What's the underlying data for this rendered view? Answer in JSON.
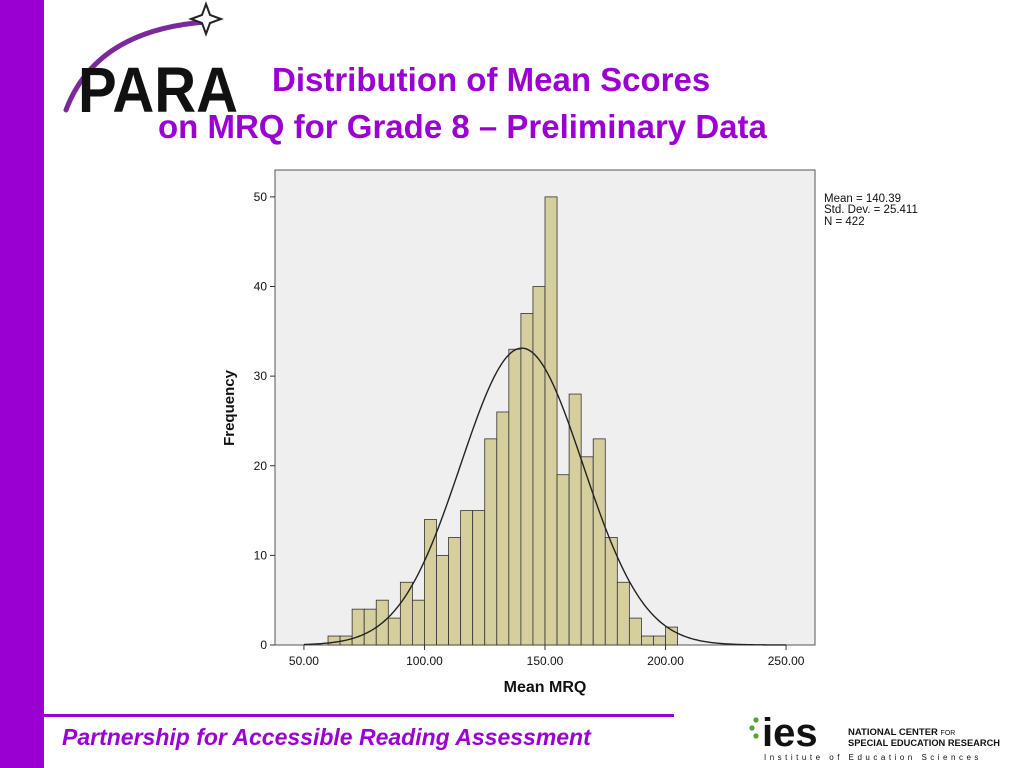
{
  "slide": {
    "title_line1": "Distribution of Mean Scores",
    "title_line2": "on MRQ for Grade 8 – Preliminary Data",
    "footer": "Partnership for Accessible Reading Assessment",
    "accent_color": "#9b00d3"
  },
  "logo": {
    "text": "PARA",
    "icon": "four-point-star-icon"
  },
  "ies_logo": {
    "mark": "ies",
    "line1_a": "NATIONAL CENTER",
    "line1_b": "FOR",
    "line2": "SPECIAL EDUCATION RESEARCH",
    "line3": "Institute of Education Sciences"
  },
  "chart_data": {
    "type": "bar",
    "subtype": "histogram",
    "xlabel": "Mean MRQ",
    "ylabel": "Frequency",
    "xlim": [
      38,
      262
    ],
    "ylim": [
      0,
      53
    ],
    "xticks": [
      50,
      100,
      150,
      200,
      250
    ],
    "xtick_labels": [
      "50.00",
      "100.00",
      "150.00",
      "200.00",
      "250.00"
    ],
    "yticks": [
      0,
      10,
      20,
      30,
      40,
      50
    ],
    "ytick_labels": [
      "0",
      "10",
      "20",
      "30",
      "40",
      "50"
    ],
    "bin_width": 5,
    "bins": [
      {
        "x0": 60,
        "count": 1
      },
      {
        "x0": 65,
        "count": 1
      },
      {
        "x0": 70,
        "count": 4
      },
      {
        "x0": 75,
        "count": 4
      },
      {
        "x0": 80,
        "count": 5
      },
      {
        "x0": 85,
        "count": 3
      },
      {
        "x0": 90,
        "count": 7
      },
      {
        "x0": 95,
        "count": 5
      },
      {
        "x0": 100,
        "count": 14
      },
      {
        "x0": 105,
        "count": 10
      },
      {
        "x0": 110,
        "count": 12
      },
      {
        "x0": 115,
        "count": 15
      },
      {
        "x0": 120,
        "count": 15
      },
      {
        "x0": 125,
        "count": 23
      },
      {
        "x0": 130,
        "count": 26
      },
      {
        "x0": 135,
        "count": 33
      },
      {
        "x0": 140,
        "count": 37
      },
      {
        "x0": 145,
        "count": 40
      },
      {
        "x0": 150,
        "count": 50
      },
      {
        "x0": 155,
        "count": 19
      },
      {
        "x0": 160,
        "count": 28
      },
      {
        "x0": 165,
        "count": 21
      },
      {
        "x0": 170,
        "count": 23
      },
      {
        "x0": 175,
        "count": 12
      },
      {
        "x0": 180,
        "count": 7
      },
      {
        "x0": 185,
        "count": 3
      },
      {
        "x0": 190,
        "count": 1
      },
      {
        "x0": 195,
        "count": 1
      },
      {
        "x0": 200,
        "count": 2
      }
    ],
    "normal_curve": {
      "mean": 140.39,
      "std": 25.411
    },
    "stats_lines": [
      "Mean = 140.39",
      "Std. Dev. = 25.411",
      "N = 422"
    ],
    "grid": false,
    "legend": "none",
    "bar_color": "#d5cf9e",
    "bar_stroke": "#333333",
    "plot_background": "#efefef"
  }
}
